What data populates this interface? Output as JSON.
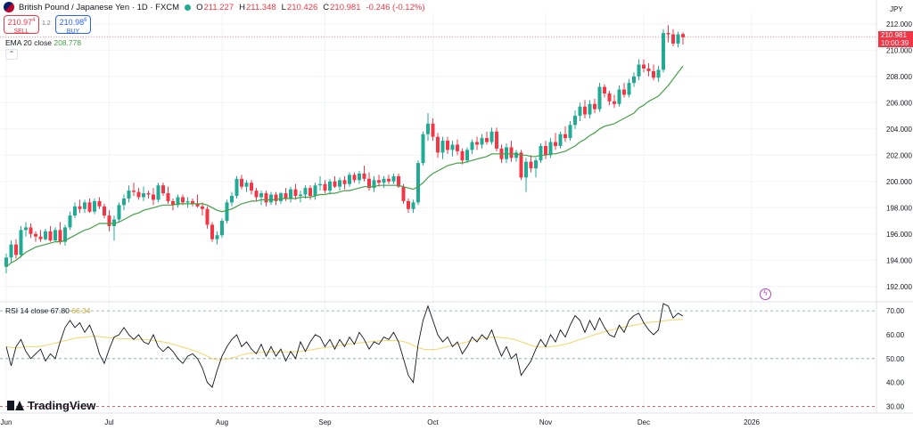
{
  "header": {
    "symbol": "British Pound / Japanese Yen · 1D · FXCM",
    "open_label": "O",
    "open": "211.227",
    "high_label": "H",
    "high": "211.348",
    "low_label": "L",
    "low": "210.426",
    "close_label": "C",
    "close": "210.981",
    "change": "-0.246 (-0.12%)"
  },
  "trade": {
    "sell_price": "210.97",
    "sell_sup": "4",
    "sell_label": "SELL",
    "spread": "1.2",
    "buy_price": "210.98",
    "buy_sup": "6",
    "buy_label": "BUY"
  },
  "ema": {
    "label": "EMA 20 close",
    "value": "208.778"
  },
  "rsi": {
    "label": "RSI 14 close",
    "value": "67.80",
    "ma_value": "66.34"
  },
  "axis": {
    "currency": "JPY",
    "last_price": "210.981",
    "countdown": "10:00:39"
  },
  "logo": {
    "text": "TradingView"
  },
  "colors": {
    "up": "#22ab94",
    "down": "#f23645",
    "ema": "#43a047",
    "rsi": "#131722",
    "rsi_ma": "#f5d565"
  },
  "chart_data": {
    "type": "candlestick",
    "price_ticks": [
      "212.000",
      "210.000",
      "208.000",
      "206.000",
      "204.000",
      "202.000",
      "200.000",
      "198.000",
      "196.000",
      "194.000",
      "192.000"
    ],
    "price_range": [
      190.9,
      212.8
    ],
    "rsi_ticks": [
      "70.00",
      "60.00",
      "50.00",
      "40.00",
      "30.00"
    ],
    "rsi_range": [
      27.2,
      73.4
    ],
    "rsi_levels": [
      70,
      50,
      30
    ],
    "x_labels": [
      {
        "label": "Jun",
        "i": 0
      },
      {
        "label": "Jul",
        "i": 21
      },
      {
        "label": "Aug",
        "i": 44
      },
      {
        "label": "Sep",
        "i": 65
      },
      {
        "label": "Oct",
        "i": 87
      },
      {
        "label": "Nov",
        "i": 110
      },
      {
        "label": "Dec",
        "i": 130
      },
      {
        "label": "2026",
        "i": 152
      }
    ],
    "ohlc": [
      [
        193.5,
        194.5,
        193.0,
        194.2
      ],
      [
        194.2,
        195.5,
        193.8,
        195.2
      ],
      [
        195.2,
        195.6,
        194.1,
        194.4
      ],
      [
        194.4,
        196.6,
        194.2,
        196.3
      ],
      [
        196.3,
        196.9,
        195.8,
        196.5
      ],
      [
        196.5,
        196.8,
        195.7,
        196.0
      ],
      [
        196.0,
        196.2,
        195.4,
        195.8
      ],
      [
        195.8,
        196.3,
        195.4,
        195.6
      ],
      [
        195.6,
        196.4,
        195.5,
        196.2
      ],
      [
        196.2,
        196.6,
        195.4,
        195.5
      ],
      [
        195.5,
        196.5,
        195.4,
        196.3
      ],
      [
        196.3,
        196.9,
        195.2,
        195.4
      ],
      [
        195.4,
        196.7,
        195.1,
        196.5
      ],
      [
        196.5,
        197.7,
        196.3,
        197.4
      ],
      [
        197.4,
        198.4,
        197.2,
        198.1
      ],
      [
        198.1,
        198.6,
        197.6,
        197.9
      ],
      [
        197.9,
        198.6,
        197.6,
        198.4
      ],
      [
        198.4,
        198.7,
        197.6,
        197.7
      ],
      [
        197.7,
        198.7,
        197.5,
        198.5
      ],
      [
        198.5,
        198.8,
        197.9,
        198.1
      ],
      [
        198.1,
        198.3,
        197.2,
        197.4
      ],
      [
        197.4,
        197.8,
        196.2,
        196.6
      ],
      [
        196.6,
        197.4,
        195.5,
        197.1
      ],
      [
        197.1,
        198.4,
        196.9,
        198.2
      ],
      [
        198.2,
        199.0,
        197.8,
        198.7
      ],
      [
        198.7,
        199.7,
        198.4,
        199.3
      ],
      [
        199.3,
        199.9,
        198.9,
        199.2
      ],
      [
        199.2,
        199.5,
        198.6,
        198.8
      ],
      [
        198.8,
        199.6,
        198.5,
        199.1
      ],
      [
        199.1,
        199.3,
        198.7,
        199.0
      ],
      [
        199.0,
        199.5,
        198.2,
        198.6
      ],
      [
        198.6,
        199.9,
        198.4,
        199.7
      ],
      [
        199.7,
        199.9,
        198.9,
        199.1
      ],
      [
        199.1,
        199.6,
        198.3,
        198.5
      ],
      [
        198.5,
        198.7,
        197.8,
        198.2
      ],
      [
        198.2,
        199.0,
        198.0,
        198.8
      ],
      [
        198.8,
        199.0,
        198.2,
        198.4
      ],
      [
        198.4,
        198.8,
        198.0,
        198.5
      ],
      [
        198.5,
        198.7,
        198.1,
        198.3
      ],
      [
        198.3,
        199.0,
        198.0,
        198.1
      ],
      [
        198.1,
        198.4,
        197.4,
        197.9
      ],
      [
        197.9,
        198.1,
        196.4,
        196.7
      ],
      [
        196.7,
        196.9,
        195.4,
        195.6
      ],
      [
        195.6,
        196.2,
        195.2,
        195.9
      ],
      [
        195.9,
        197.2,
        195.7,
        197.0
      ],
      [
        197.0,
        198.6,
        196.8,
        198.4
      ],
      [
        198.4,
        199.2,
        198.1,
        198.9
      ],
      [
        198.9,
        200.4,
        198.7,
        200.2
      ],
      [
        200.2,
        200.5,
        199.4,
        199.6
      ],
      [
        199.6,
        200.1,
        199.2,
        199.9
      ],
      [
        199.9,
        200.1,
        199.0,
        199.3
      ],
      [
        199.3,
        199.5,
        198.5,
        198.8
      ],
      [
        198.8,
        199.3,
        198.2,
        199.1
      ],
      [
        199.1,
        199.3,
        198.1,
        198.4
      ],
      [
        198.4,
        199.2,
        198.2,
        199.0
      ],
      [
        199.0,
        199.2,
        198.2,
        198.5
      ],
      [
        198.5,
        199.2,
        198.3,
        199.1
      ],
      [
        199.1,
        199.5,
        198.5,
        198.7
      ],
      [
        198.7,
        199.6,
        198.4,
        199.4
      ],
      [
        199.4,
        199.8,
        198.6,
        198.9
      ],
      [
        198.9,
        199.3,
        198.4,
        199.0
      ],
      [
        199.0,
        199.7,
        198.7,
        199.5
      ],
      [
        199.5,
        199.7,
        198.6,
        198.9
      ],
      [
        198.9,
        199.9,
        198.6,
        199.7
      ],
      [
        199.7,
        200.4,
        199.3,
        199.8
      ],
      [
        199.8,
        200.1,
        199.1,
        199.3
      ],
      [
        199.3,
        200.2,
        199.0,
        200.0
      ],
      [
        200.0,
        200.4,
        199.5,
        199.6
      ],
      [
        199.6,
        200.3,
        199.3,
        200.1
      ],
      [
        200.1,
        200.4,
        199.4,
        199.8
      ],
      [
        199.8,
        200.7,
        199.6,
        200.5
      ],
      [
        200.5,
        200.7,
        199.9,
        200.1
      ],
      [
        200.1,
        200.8,
        199.8,
        200.6
      ],
      [
        200.6,
        201.2,
        200.0,
        200.2
      ],
      [
        200.2,
        200.7,
        199.3,
        199.5
      ],
      [
        199.5,
        200.4,
        199.2,
        200.1
      ],
      [
        200.1,
        200.5,
        199.6,
        199.9
      ],
      [
        199.9,
        200.4,
        199.5,
        200.2
      ],
      [
        200.2,
        200.5,
        199.8,
        200.0
      ],
      [
        200.0,
        200.6,
        199.8,
        200.4
      ],
      [
        200.4,
        200.6,
        199.5,
        199.6
      ],
      [
        199.6,
        199.8,
        198.3,
        198.5
      ],
      [
        198.5,
        198.7,
        197.6,
        197.9
      ],
      [
        197.9,
        198.6,
        197.6,
        198.4
      ],
      [
        198.4,
        201.6,
        198.2,
        201.4
      ],
      [
        201.4,
        203.8,
        201.2,
        203.6
      ],
      [
        203.6,
        205.2,
        203.1,
        204.4
      ],
      [
        204.4,
        204.8,
        203.1,
        203.4
      ],
      [
        203.4,
        203.7,
        201.8,
        202.2
      ],
      [
        202.2,
        203.4,
        201.7,
        203.1
      ],
      [
        203.1,
        203.4,
        202.1,
        202.4
      ],
      [
        202.4,
        203.1,
        201.9,
        202.8
      ],
      [
        202.8,
        203.2,
        202.0,
        202.3
      ],
      [
        202.3,
        202.5,
        201.3,
        201.6
      ],
      [
        201.6,
        202.6,
        201.4,
        202.4
      ],
      [
        202.4,
        203.2,
        202.1,
        203.0
      ],
      [
        203.0,
        203.4,
        202.4,
        202.8
      ],
      [
        202.8,
        203.6,
        202.5,
        203.3
      ],
      [
        203.3,
        203.8,
        202.8,
        203.0
      ],
      [
        203.0,
        204.1,
        202.8,
        203.8
      ],
      [
        203.8,
        204.1,
        202.3,
        202.5
      ],
      [
        202.5,
        202.8,
        201.4,
        201.7
      ],
      [
        201.7,
        202.9,
        201.4,
        202.6
      ],
      [
        202.6,
        203.1,
        201.5,
        201.8
      ],
      [
        201.8,
        202.4,
        201.5,
        202.2
      ],
      [
        202.2,
        202.4,
        200.1,
        200.3
      ],
      [
        200.3,
        201.8,
        199.2,
        201.5
      ],
      [
        201.5,
        202.0,
        200.7,
        201.0
      ],
      [
        201.0,
        201.8,
        200.3,
        201.6
      ],
      [
        201.6,
        202.9,
        201.4,
        202.7
      ],
      [
        202.7,
        203.1,
        201.7,
        202.0
      ],
      [
        202.0,
        203.3,
        201.8,
        203.0
      ],
      [
        203.0,
        203.7,
        202.4,
        202.7
      ],
      [
        202.7,
        203.8,
        202.5,
        203.6
      ],
      [
        203.6,
        204.2,
        203.0,
        203.3
      ],
      [
        203.3,
        204.6,
        203.1,
        204.3
      ],
      [
        204.3,
        205.4,
        204.0,
        205.0
      ],
      [
        205.0,
        206.0,
        204.6,
        205.7
      ],
      [
        205.7,
        206.2,
        204.8,
        205.1
      ],
      [
        205.1,
        206.2,
        204.8,
        205.9
      ],
      [
        205.9,
        206.3,
        205.2,
        205.5
      ],
      [
        205.5,
        207.5,
        205.3,
        207.2
      ],
      [
        207.2,
        207.4,
        206.4,
        206.7
      ],
      [
        206.7,
        206.9,
        205.8,
        206.1
      ],
      [
        206.1,
        206.6,
        205.6,
        205.9
      ],
      [
        205.9,
        207.3,
        205.7,
        207.0
      ],
      [
        207.0,
        207.5,
        206.4,
        206.6
      ],
      [
        206.6,
        207.8,
        206.4,
        207.5
      ],
      [
        207.5,
        208.3,
        207.2,
        208.0
      ],
      [
        208.0,
        209.3,
        207.7,
        208.9
      ],
      [
        208.9,
        209.3,
        208.3,
        208.6
      ],
      [
        208.6,
        209.0,
        208.0,
        208.4
      ],
      [
        208.4,
        208.9,
        207.7,
        207.9
      ],
      [
        207.9,
        208.8,
        207.6,
        208.5
      ],
      [
        208.5,
        211.6,
        208.3,
        211.3
      ],
      [
        211.3,
        211.9,
        210.6,
        211.2
      ],
      [
        211.2,
        211.6,
        210.3,
        210.5
      ],
      [
        210.5,
        211.4,
        210.2,
        211.2
      ],
      [
        211.227,
        211.348,
        210.426,
        210.981
      ]
    ],
    "ema20": [
      193.5,
      193.8,
      194.0,
      194.3,
      194.6,
      194.8,
      195.0,
      195.1,
      195.2,
      195.3,
      195.4,
      195.4,
      195.5,
      195.7,
      195.9,
      196.1,
      196.3,
      196.4,
      196.6,
      196.8,
      196.8,
      196.8,
      196.8,
      196.9,
      197.1,
      197.3,
      197.5,
      197.6,
      197.8,
      197.9,
      198.0,
      198.1,
      198.2,
      198.2,
      198.2,
      198.3,
      198.3,
      198.3,
      198.3,
      198.3,
      198.3,
      198.2,
      198.0,
      197.8,
      197.7,
      197.8,
      197.9,
      198.1,
      198.3,
      198.4,
      198.5,
      198.5,
      198.6,
      198.6,
      198.6,
      198.6,
      198.7,
      198.7,
      198.7,
      198.7,
      198.8,
      198.8,
      198.8,
      198.9,
      199.0,
      199.0,
      199.1,
      199.1,
      199.2,
      199.3,
      199.3,
      199.4,
      199.5,
      199.6,
      199.6,
      199.6,
      199.7,
      199.7,
      199.7,
      199.7,
      199.7,
      199.6,
      199.5,
      199.4,
      199.6,
      199.9,
      200.3,
      200.6,
      200.8,
      201.0,
      201.2,
      201.3,
      201.4,
      201.4,
      201.5,
      201.6,
      201.7,
      201.8,
      201.9,
      202.1,
      202.1,
      202.1,
      202.1,
      202.1,
      202.1,
      202.0,
      202.0,
      201.9,
      201.9,
      202.0,
      202.0,
      202.1,
      202.1,
      202.2,
      202.3,
      202.5,
      202.7,
      203.0,
      203.2,
      203.5,
      203.7,
      204.0,
      204.2,
      204.3,
      204.4,
      204.6,
      204.8,
      205.0,
      205.2,
      205.6,
      205.8,
      206.1,
      206.3,
      206.5,
      206.9,
      207.3,
      207.8,
      208.3,
      208.778
    ],
    "rsi14": [
      55.0,
      47.0,
      55.0,
      58.0,
      53.0,
      50.0,
      52.0,
      54.0,
      49.0,
      52.0,
      50.0,
      57.0,
      63.0,
      66.0,
      63.0,
      65.0,
      61.0,
      64.0,
      59.0,
      52.0,
      48.0,
      54.0,
      59.0,
      60.0,
      63.0,
      60.0,
      58.0,
      60.0,
      57.0,
      56.0,
      60.0,
      55.0,
      53.0,
      55.0,
      53.0,
      50.0,
      48.0,
      51.0,
      52.0,
      50.0,
      46.0,
      40.0,
      38.0,
      45.0,
      51.0,
      55.0,
      58.0,
      60.0,
      55.0,
      57.0,
      54.0,
      52.0,
      56.0,
      51.0,
      55.0,
      51.0,
      54.0,
      49.0,
      53.0,
      50.0,
      57.0,
      53.0,
      57.0,
      60.0,
      59.0,
      55.0,
      58.0,
      54.0,
      58.0,
      55.0,
      59.0,
      56.0,
      61.0,
      58.0,
      54.0,
      57.0,
      56.0,
      59.0,
      58.0,
      61.0,
      57.0,
      50.0,
      43.0,
      40.0,
      56.0,
      66.0,
      72.0,
      66.0,
      60.0,
      57.0,
      59.0,
      55.0,
      57.0,
      52.0,
      55.0,
      59.0,
      57.0,
      60.0,
      58.0,
      62.0,
      56.0,
      51.0,
      55.0,
      50.0,
      52.0,
      43.0,
      46.0,
      49.0,
      54.0,
      58.0,
      55.0,
      60.0,
      57.0,
      62.0,
      59.0,
      64.0,
      68.0,
      66.0,
      61.0,
      66.0,
      62.0,
      67.0,
      63.0,
      60.0,
      59.0,
      64.0,
      61.0,
      66.0,
      68.0,
      69.0,
      65.0,
      62.0,
      60.0,
      62.0,
      73.0,
      72.0,
      67.0,
      69.0,
      67.8
    ],
    "rsi_ma": [
      55.0,
      54.7,
      54.5,
      54.7,
      55.0,
      55.0,
      54.9,
      55.2,
      55.5,
      56.0,
      56.5,
      57.0,
      57.5,
      58.0,
      58.5,
      58.8,
      59.0,
      59.2,
      59.4,
      59.2,
      59.0,
      58.8,
      58.6,
      58.4,
      58.3,
      58.3,
      58.2,
      58.1,
      58.0,
      57.8,
      57.6,
      57.3,
      57.0,
      56.6,
      56.0,
      55.4,
      54.8,
      54.2,
      53.5,
      52.8,
      52.0,
      51.0,
      50.0,
      49.5,
      49.5,
      49.8,
      50.3,
      50.8,
      51.5,
      52.0,
      52.3,
      52.5,
      52.6,
      52.7,
      52.8,
      52.8,
      52.8,
      52.8,
      52.8,
      52.9,
      53.0,
      53.3,
      53.6,
      54.0,
      54.3,
      54.6,
      54.9,
      55.2,
      55.5,
      55.8,
      56.1,
      56.3,
      56.6,
      56.8,
      57.0,
      57.2,
      57.4,
      57.5,
      57.6,
      57.6,
      57.5,
      57.2,
      56.5,
      55.5,
      54.5,
      54.0,
      53.8,
      53.8,
      54.0,
      54.5,
      55.0,
      55.5,
      56.0,
      56.5,
      57.0,
      57.5,
      58.0,
      58.5,
      58.8,
      59.0,
      59.0,
      58.8,
      58.6,
      58.3,
      57.8,
      57.0,
      56.3,
      55.5,
      55.0,
      54.8,
      54.8,
      55.0,
      55.2,
      55.6,
      56.0,
      56.6,
      57.3,
      58.0,
      58.6,
      59.3,
      60.0,
      60.6,
      61.2,
      61.8,
      62.3,
      62.8,
      63.2,
      63.6,
      64.0,
      64.4,
      64.8,
      65.1,
      65.3,
      65.5,
      65.8,
      66.0,
      66.2,
      66.3,
      66.34
    ]
  }
}
